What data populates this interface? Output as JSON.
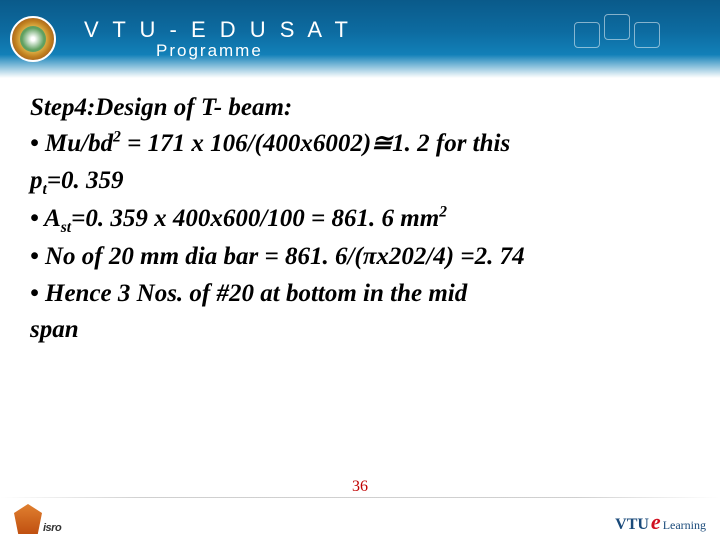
{
  "header": {
    "title": "V T U - E D U S A T",
    "subtitle": "Programme"
  },
  "content": {
    "heading": "Step4:Design of T- beam:",
    "line1_pre": "• Mu/bd",
    "line1_sup": "2",
    "line1_post": " = 171 x 106/(400x6002)≅1. 2 for this",
    "line2_pre": "p",
    "line2_sub": "t",
    "line2_post": "=0. 359",
    "line3_pre": "• A",
    "line3_sub": "st",
    "line3_mid": "=0. 359 x 400x600/100 = 861. 6 mm",
    "line3_sup": "2",
    "line4": "• No of 20 mm dia bar = 861. 6/(πx202/4) =2. 74",
    "line5": "• Hence 3 Nos. of  #20 at bottom in the mid",
    "line6": "span"
  },
  "page_number": "36",
  "footer": {
    "left_text": "isro",
    "right_vtu": "VTU",
    "right_e": "e",
    "right_learning": "Learning"
  }
}
